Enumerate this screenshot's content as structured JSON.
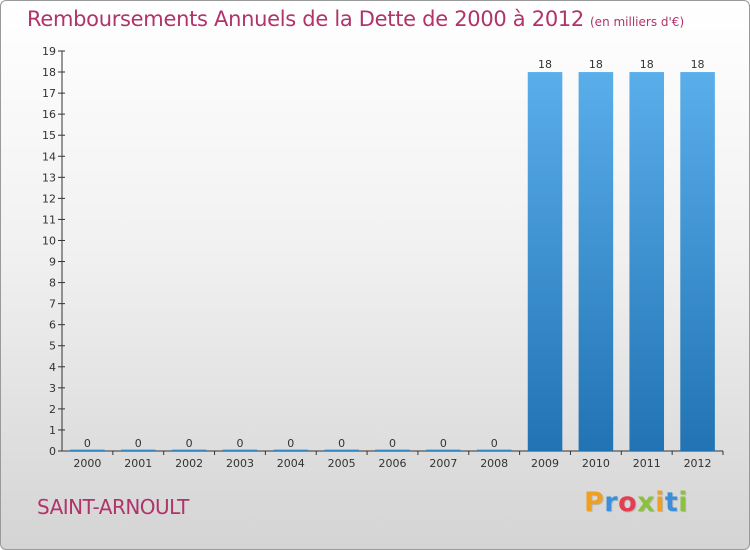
{
  "header": {
    "title": "Remboursements Annuels de la Dette de 2000 à 2012",
    "subtitle": "(en milliers d'€)"
  },
  "footer": {
    "commune": "SAINT-ARNOULT",
    "brand": "Proxiti"
  },
  "colors": {
    "accent": "#b0336a",
    "bar_top": "#5aaeea",
    "bar_bottom": "#2173b3"
  },
  "chart_data": {
    "type": "bar",
    "title": "Remboursements Annuels de la Dette de 2000 à 2012",
    "subtitle": "(en milliers d'€)",
    "categories": [
      "2000",
      "2001",
      "2002",
      "2003",
      "2004",
      "2005",
      "2006",
      "2007",
      "2008",
      "2009",
      "2010",
      "2011",
      "2012"
    ],
    "values": [
      0,
      0,
      0,
      0,
      0,
      0,
      0,
      0,
      0,
      18,
      18,
      18,
      18
    ],
    "data_labels": [
      "0",
      "0",
      "0",
      "0",
      "0",
      "0",
      "0",
      "0",
      "0",
      "18",
      "18",
      "18",
      "18"
    ],
    "ylim": [
      0,
      19
    ],
    "yticks": [
      0,
      1,
      2,
      3,
      4,
      5,
      6,
      7,
      8,
      9,
      10,
      11,
      12,
      13,
      14,
      15,
      16,
      17,
      18,
      19
    ],
    "xlabel": "",
    "ylabel": "",
    "grid": false,
    "legend": "none"
  }
}
